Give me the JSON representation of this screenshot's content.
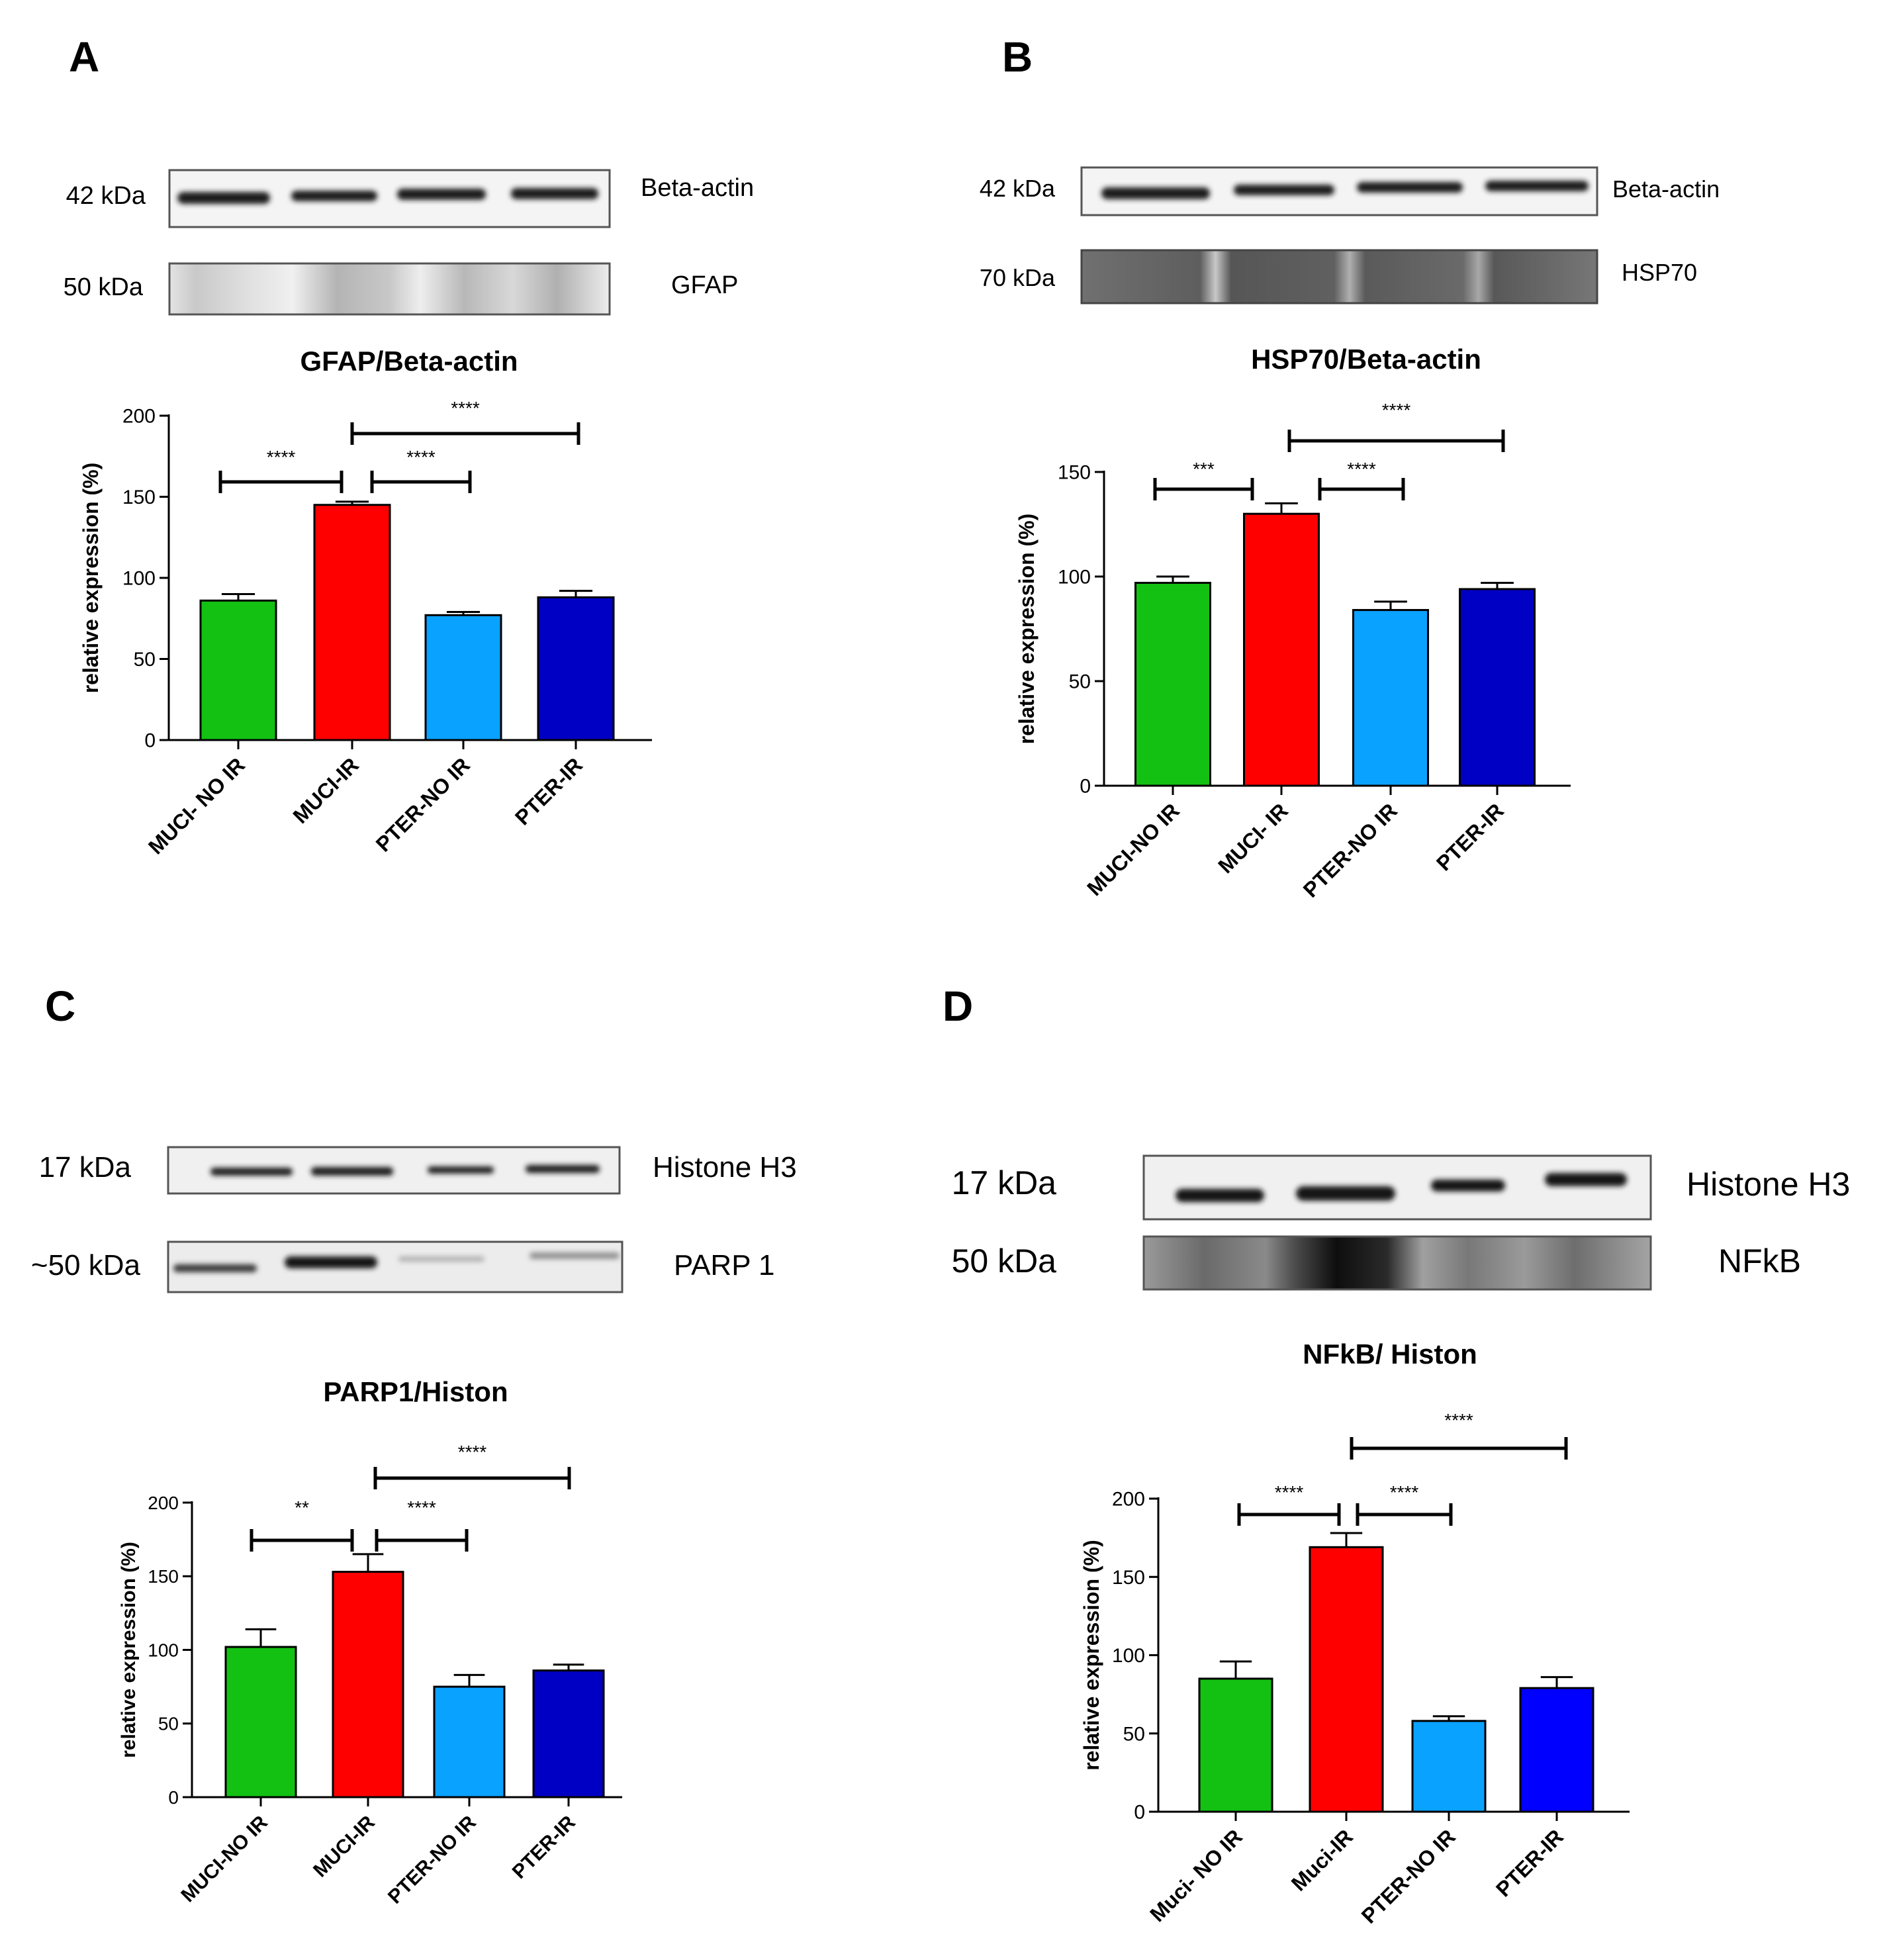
{
  "colors": {
    "green": "#13c113",
    "red": "#ff0000",
    "lightblue": "#0aa2ff",
    "darkblue": "#0000c4",
    "blue_d": "#0000ff"
  },
  "panels": [
    {
      "letter": "A",
      "blot": {
        "rows": [
          {
            "kda": "42 kDa",
            "protein": "Beta-actin"
          },
          {
            "kda": "50 kDa",
            "protein": "GFAP"
          }
        ]
      },
      "chart_data": {
        "type": "bar",
        "title": "GFAP/Beta-actin",
        "ylabel": "relative expression (%)",
        "ylim": [
          0,
          200
        ],
        "yticks": [
          "0",
          "50",
          "100",
          "150",
          "200"
        ],
        "categories": [
          "MUCI- NO IR",
          "MUCI-IR",
          "PTER-NO IR",
          "PTER-IR"
        ],
        "values": [
          86,
          145,
          77,
          88
        ],
        "errors": [
          4,
          2,
          2,
          4
        ],
        "bar_colors": [
          "#13c113",
          "#ff0000",
          "#0aa2ff",
          "#0000c4"
        ],
        "significance": [
          {
            "from": 0,
            "to": 1,
            "label": "****"
          },
          {
            "from": 1,
            "to": 2,
            "label": "****"
          },
          {
            "from": 1,
            "to": 3,
            "label": "****"
          }
        ]
      }
    },
    {
      "letter": "B",
      "blot": {
        "rows": [
          {
            "kda": "42 kDa",
            "protein": "Beta-actin"
          },
          {
            "kda": "70 kDa",
            "protein": "HSP70"
          }
        ]
      },
      "chart_data": {
        "type": "bar",
        "title": "HSP70/Beta-actin",
        "ylabel": "relative expression (%)",
        "ylim": [
          0,
          150
        ],
        "yticks": [
          "0",
          "50",
          "100",
          "150"
        ],
        "categories": [
          "MUCI-NO IR",
          "MUCI- IR",
          "PTER-NO IR",
          "PTER-IR"
        ],
        "values": [
          97,
          130,
          84,
          94
        ],
        "errors": [
          3,
          5,
          4,
          3
        ],
        "bar_colors": [
          "#13c113",
          "#ff0000",
          "#0aa2ff",
          "#0000c4"
        ],
        "significance": [
          {
            "from": 0,
            "to": 1,
            "label": "***"
          },
          {
            "from": 1,
            "to": 2,
            "label": "****"
          },
          {
            "from": 1,
            "to": 3,
            "label": "****"
          }
        ]
      }
    },
    {
      "letter": "C",
      "blot": {
        "rows": [
          {
            "kda": "17 kDa",
            "protein": "Histone H3"
          },
          {
            "kda": "~50 kDa",
            "protein": "PARP 1"
          }
        ]
      },
      "chart_data": {
        "type": "bar",
        "title": "PARP1/Histon",
        "ylabel": "relative expression (%)",
        "ylim": [
          0,
          200
        ],
        "yticks": [
          "0",
          "50",
          "100",
          "150",
          "200"
        ],
        "categories": [
          "MUCI-NO IR",
          "MUCI-IR",
          "PTER-NO IR",
          "PTER-IR"
        ],
        "values": [
          102,
          153,
          75,
          86
        ],
        "errors": [
          12,
          12,
          8,
          4
        ],
        "bar_colors": [
          "#13c113",
          "#ff0000",
          "#0aa2ff",
          "#0000c4"
        ],
        "significance": [
          {
            "from": 0,
            "to": 1,
            "label": "**"
          },
          {
            "from": 1,
            "to": 2,
            "label": "****"
          },
          {
            "from": 1,
            "to": 3,
            "label": "****"
          }
        ]
      }
    },
    {
      "letter": "D",
      "blot": {
        "rows": [
          {
            "kda": "17 kDa",
            "protein": "Histone H3"
          },
          {
            "kda": "50 kDa",
            "protein": "NFkB"
          }
        ]
      },
      "chart_data": {
        "type": "bar",
        "title": "NFkB/ Histon",
        "ylabel": "relative expression (%)",
        "ylim": [
          0,
          200
        ],
        "yticks": [
          "0",
          "50",
          "100",
          "150",
          "200"
        ],
        "categories": [
          "Muci- NO IR",
          "Muci-IR",
          "PTER-NO IR",
          "PTER-IR"
        ],
        "values": [
          85,
          169,
          58,
          79
        ],
        "errors": [
          11,
          9,
          3,
          7
        ],
        "bar_colors": [
          "#13c113",
          "#ff0000",
          "#0aa2ff",
          "#0000ff"
        ],
        "significance": [
          {
            "from": 0,
            "to": 1,
            "label": "****"
          },
          {
            "from": 1,
            "to": 2,
            "label": "****"
          },
          {
            "from": 1,
            "to": 3,
            "label": "****"
          }
        ]
      }
    }
  ]
}
